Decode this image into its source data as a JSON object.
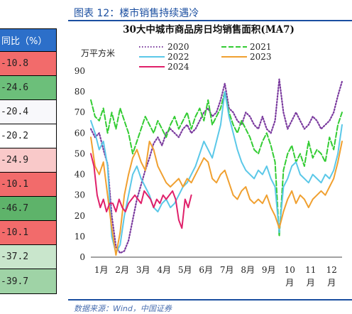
{
  "figure_title": "图表 12：楼市销售持续遇冷",
  "source_text": "数据来源：Wind，中国证券",
  "table": {
    "header": "同比（%）",
    "rows": [
      {
        "value": "-10.8",
        "color": "#f26b6b"
      },
      {
        "value": "-24.6",
        "color": "#6cbf7a"
      },
      {
        "value": "-20.4",
        "color": "#f8f8fb"
      },
      {
        "value": "-20.2",
        "color": "#ffffff"
      },
      {
        "value": "-24.9",
        "color": "#f9c9c9"
      },
      {
        "value": "-10.1",
        "color": "#f26b6b"
      },
      {
        "value": "-46.7",
        "color": "#5eb36a"
      },
      {
        "value": "-10.1",
        "color": "#f26b6b"
      },
      {
        "value": "-37.2",
        "color": "#c9e6cc"
      },
      {
        "value": "-39.7",
        "color": "#9fd3a6"
      }
    ]
  },
  "chart_data": {
    "type": "line",
    "title": "30大中城市商品房日均销售面积(MA7)",
    "ylabel": "万平方米",
    "ylim": [
      0,
      90
    ],
    "yticks": [
      0,
      10,
      20,
      30,
      40,
      50,
      60,
      70,
      80,
      90
    ],
    "xlim": [
      1,
      13
    ],
    "xticks": [
      "1月",
      "2月",
      "3月",
      "4月",
      "5月",
      "6月",
      "7月",
      "8月",
      "9月",
      "10月",
      "11月",
      "12月"
    ],
    "legend_position": "top",
    "series": [
      {
        "name": "2020",
        "color": "#7a3a9e",
        "dash": "dot",
        "x": [
          1.0,
          1.2,
          1.4,
          1.6,
          1.8,
          2.0,
          2.2,
          2.4,
          2.6,
          2.8,
          3.0,
          3.2,
          3.4,
          3.6,
          3.8,
          4.0,
          4.2,
          4.4,
          4.6,
          4.8,
          5.0,
          5.2,
          5.4,
          5.6,
          5.8,
          6.0,
          6.2,
          6.4,
          6.6,
          6.8,
          7.0,
          7.2,
          7.4,
          7.6,
          7.8,
          8.0,
          8.2,
          8.4,
          8.6,
          8.8,
          9.0,
          9.2,
          9.4,
          9.6,
          9.8,
          10.0,
          10.2,
          10.4,
          10.6,
          10.8,
          11.0,
          11.2,
          11.4,
          11.6,
          11.8,
          12.0,
          12.2,
          12.4,
          12.6,
          12.8,
          13.0
        ],
        "values": [
          62,
          58,
          60,
          52,
          45,
          20,
          5,
          2,
          3,
          8,
          18,
          28,
          35,
          42,
          48,
          55,
          58,
          54,
          60,
          62,
          60,
          58,
          62,
          64,
          60,
          62,
          66,
          70,
          72,
          68,
          70,
          76,
          84,
          72,
          70,
          66,
          64,
          70,
          68,
          64,
          62,
          68,
          62,
          60,
          66,
          86,
          70,
          62,
          66,
          70,
          66,
          62,
          64,
          68,
          66,
          62,
          64,
          66,
          70,
          78,
          85
        ]
      },
      {
        "name": "2021",
        "color": "#33cc33",
        "dash": "dash",
        "x": [
          1.0,
          1.2,
          1.4,
          1.6,
          1.8,
          2.0,
          2.2,
          2.4,
          2.6,
          2.8,
          3.0,
          3.2,
          3.4,
          3.6,
          3.8,
          4.0,
          4.2,
          4.4,
          4.6,
          4.8,
          5.0,
          5.2,
          5.4,
          5.6,
          5.8,
          6.0,
          6.2,
          6.4,
          6.6,
          6.8,
          7.0,
          7.2,
          7.4,
          7.6,
          7.8,
          8.0,
          8.2,
          8.4,
          8.6,
          8.8,
          9.0,
          9.2,
          9.4,
          9.6,
          9.8,
          10.0,
          10.2,
          10.4,
          10.6,
          10.8,
          11.0,
          11.2,
          11.4,
          11.6,
          11.8,
          12.0,
          12.2,
          12.4,
          12.6,
          12.8,
          13.0
        ],
        "values": [
          76,
          68,
          66,
          72,
          60,
          70,
          62,
          72,
          66,
          60,
          50,
          56,
          62,
          68,
          64,
          60,
          66,
          62,
          58,
          64,
          68,
          62,
          66,
          70,
          62,
          68,
          72,
          66,
          76,
          64,
          68,
          72,
          80,
          70,
          64,
          60,
          66,
          62,
          58,
          52,
          50,
          56,
          60,
          54,
          46,
          10,
          42,
          50,
          54,
          46,
          50,
          44,
          56,
          48,
          52,
          50,
          46,
          58,
          52,
          64,
          70
        ]
      },
      {
        "name": "2022",
        "color": "#5bc8e8",
        "dash": "solid",
        "x": [
          1.0,
          1.2,
          1.4,
          1.6,
          1.8,
          2.0,
          2.2,
          2.4,
          2.6,
          2.8,
          3.0,
          3.2,
          3.4,
          3.6,
          3.8,
          4.0,
          4.2,
          4.4,
          4.6,
          4.8,
          5.0,
          5.2,
          5.4,
          5.6,
          5.8,
          6.0,
          6.2,
          6.4,
          6.6,
          6.8,
          7.0,
          7.2,
          7.4,
          7.6,
          7.8,
          8.0,
          8.2,
          8.4,
          8.6,
          8.8,
          9.0,
          9.2,
          9.4,
          9.6,
          9.8,
          10.0,
          10.2,
          10.4,
          10.6,
          10.8,
          11.0,
          11.2,
          11.4,
          11.6,
          11.8,
          12.0,
          12.2,
          12.4,
          12.6,
          12.8,
          13.0
        ],
        "values": [
          66,
          60,
          52,
          56,
          44,
          10,
          2,
          6,
          20,
          30,
          40,
          44,
          38,
          34,
          30,
          24,
          22,
          26,
          28,
          24,
          26,
          30,
          34,
          36,
          40,
          44,
          50,
          56,
          52,
          48,
          56,
          64,
          80,
          68,
          60,
          52,
          46,
          42,
          40,
          38,
          42,
          40,
          44,
          38,
          34,
          12,
          34,
          38,
          44,
          46,
          40,
          38,
          36,
          40,
          38,
          36,
          40,
          38,
          42,
          50,
          64
        ]
      },
      {
        "name": "2023",
        "color": "#f0a030",
        "dash": "solid",
        "x": [
          1.0,
          1.2,
          1.4,
          1.6,
          1.8,
          2.0,
          2.2,
          2.4,
          2.6,
          2.8,
          3.0,
          3.2,
          3.4,
          3.6,
          3.8,
          4.0,
          4.2,
          4.4,
          4.6,
          4.8,
          5.0,
          5.2,
          5.4,
          5.6,
          5.8,
          6.0,
          6.2,
          6.4,
          6.6,
          6.8,
          7.0,
          7.2,
          7.4,
          7.6,
          7.8,
          8.0,
          8.2,
          8.4,
          8.6,
          8.8,
          9.0,
          9.2,
          9.4,
          9.6,
          9.8,
          10.0,
          10.2,
          10.4,
          10.6,
          10.8,
          11.0,
          11.2,
          11.4,
          11.6,
          11.8,
          12.0,
          12.2,
          12.4,
          12.6,
          12.8,
          13.0
        ],
        "values": [
          58,
          44,
          40,
          46,
          30,
          14,
          1,
          12,
          30,
          40,
          48,
          52,
          46,
          42,
          56,
          52,
          44,
          40,
          36,
          34,
          36,
          38,
          34,
          38,
          36,
          40,
          44,
          48,
          46,
          38,
          36,
          40,
          42,
          36,
          30,
          28,
          32,
          34,
          28,
          26,
          28,
          26,
          30,
          24,
          20,
          14,
          22,
          28,
          32,
          26,
          30,
          28,
          24,
          28,
          30,
          32,
          30,
          34,
          38,
          46,
          56
        ]
      },
      {
        "name": "2024",
        "color": "#e0206a",
        "dash": "solid",
        "x": [
          1.0,
          1.15,
          1.3,
          1.45,
          1.6,
          1.75,
          1.9,
          2.05,
          2.2,
          2.35,
          2.5,
          2.65,
          2.8,
          2.95,
          3.1,
          3.25,
          3.4,
          3.55,
          3.7,
          3.85,
          4.0,
          4.15,
          4.3,
          4.45,
          4.6,
          4.75,
          4.9,
          5.05,
          5.2,
          5.35,
          5.5,
          5.65,
          5.8
        ],
        "values": [
          50,
          44,
          30,
          24,
          28,
          22,
          26,
          26,
          22,
          28,
          24,
          22,
          26,
          28,
          30,
          28,
          26,
          32,
          30,
          28,
          24,
          28,
          26,
          30,
          28,
          30,
          32,
          28,
          18,
          14,
          28,
          24,
          30
        ]
      }
    ]
  }
}
